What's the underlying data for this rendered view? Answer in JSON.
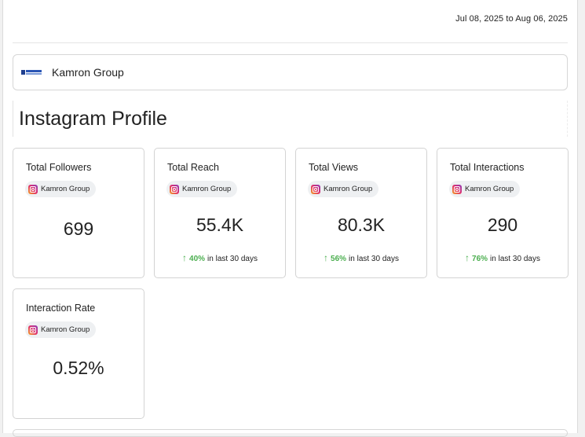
{
  "header": {
    "date_range": "Jul 08, 2025 to Aug 06, 2025"
  },
  "company": {
    "name": "Kamron Group",
    "logo_icon": "company-logo-icon"
  },
  "section": {
    "title": "Instagram Profile"
  },
  "cards": [
    {
      "title": "Total Followers",
      "chip_label": "Kamron Group",
      "chip_icon": "instagram-icon",
      "value": "699"
    },
    {
      "title": "Total Reach",
      "chip_label": "Kamron Group",
      "chip_icon": "instagram-icon",
      "value": "55.4K",
      "trend": {
        "arrow": "↑",
        "percent": "40%",
        "text": "in last 30 days"
      }
    },
    {
      "title": "Total Views",
      "chip_label": "Kamron Group",
      "chip_icon": "instagram-icon",
      "value": "80.3K",
      "trend": {
        "arrow": "↑",
        "percent": "56%",
        "text": "in last 30 days"
      }
    },
    {
      "title": "Total Interactions",
      "chip_label": "Kamron Group",
      "chip_icon": "instagram-icon",
      "value": "290",
      "trend": {
        "arrow": "↑",
        "percent": "76%",
        "text": "in last 30 days"
      }
    },
    {
      "title": "Interaction Rate",
      "chip_label": "Kamron Group",
      "chip_icon": "instagram-icon",
      "value": "0.52%"
    }
  ],
  "colors": {
    "trend_positive": "#4caf50",
    "border": "#d3d3d3",
    "chip_background": "#eef0f2"
  }
}
